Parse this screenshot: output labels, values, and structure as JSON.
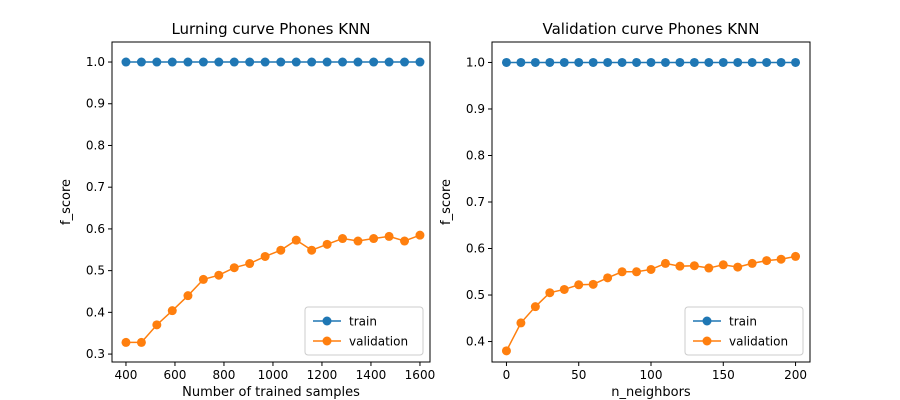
{
  "chart_data": [
    {
      "type": "line",
      "title": "Lurning curve Phones KNN",
      "x_label": "Number of trained samples",
      "y_label": "f_score",
      "x": [
        400,
        463,
        526,
        589,
        653,
        716,
        779,
        842,
        905,
        968,
        1032,
        1095,
        1158,
        1221,
        1284,
        1347,
        1411,
        1474,
        1537,
        1600
      ],
      "series": [
        {
          "name": "train",
          "color": "#1f77b4",
          "values": [
            1.0,
            1.0,
            1.0,
            1.0,
            1.0,
            1.0,
            1.0,
            1.0,
            1.0,
            1.0,
            1.0,
            1.0,
            1.0,
            1.0,
            1.0,
            1.0,
            1.0,
            1.0,
            1.0,
            1.0
          ]
        },
        {
          "name": "validation",
          "color": "#ff7f0e",
          "values": [
            0.328,
            0.328,
            0.37,
            0.404,
            0.44,
            0.479,
            0.489,
            0.507,
            0.517,
            0.534,
            0.549,
            0.573,
            0.549,
            0.563,
            0.577,
            0.571,
            0.577,
            0.582,
            0.571,
            0.585
          ]
        }
      ],
      "xlim": [
        343,
        1641
      ],
      "xticks": [
        400,
        600,
        800,
        1000,
        1200,
        1400,
        1600
      ],
      "ylim": [
        0.281,
        1.048
      ],
      "yticks": [
        0.3,
        0.4,
        0.5,
        0.6,
        0.7,
        0.8,
        0.9,
        {
          "value": 1,
          "label": "1.0"
        }
      ],
      "legend": "lower right"
    },
    {
      "type": "line",
      "title": "Validation curve Phones KNN",
      "x_label": "n_neighbors",
      "y_label": "f_score",
      "x": [
        0,
        10,
        20,
        30,
        40,
        50,
        60,
        70,
        80,
        90,
        100,
        110,
        120,
        130,
        140,
        150,
        160,
        170,
        180,
        190,
        200
      ],
      "series": [
        {
          "name": "train",
          "color": "#1f77b4",
          "values": [
            1.0,
            1.0,
            1.0,
            1.0,
            1.0,
            1.0,
            1.0,
            1.0,
            1.0,
            1.0,
            1.0,
            1.0,
            1.0,
            1.0,
            1.0,
            1.0,
            1.0,
            1.0,
            1.0,
            1.0,
            1.0
          ]
        },
        {
          "name": "validation",
          "color": "#ff7f0e",
          "values": [
            0.38,
            0.44,
            0.475,
            0.505,
            0.512,
            0.522,
            0.523,
            0.537,
            0.55,
            0.55,
            0.555,
            0.568,
            0.562,
            0.563,
            0.558,
            0.565,
            0.56,
            0.568,
            0.574,
            0.577,
            0.583
          ]
        }
      ],
      "xlim": [
        -10,
        210
      ],
      "xticks": [
        0,
        50,
        100,
        150,
        200
      ],
      "ylim": [
        0.356,
        1.044
      ],
      "yticks": [
        0.4,
        0.5,
        0.6,
        0.7,
        0.8,
        0.9,
        {
          "value": 1,
          "label": "1.0"
        }
      ],
      "legend": "lower right"
    }
  ]
}
